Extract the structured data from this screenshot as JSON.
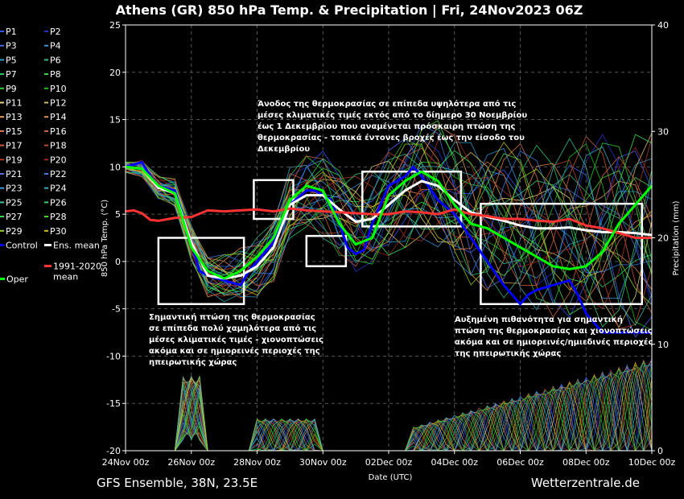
{
  "chart_data": {
    "type": "line",
    "title": "Athens  (GR)  850 hPa Temp. & Precipitation | Fri, 24Nov2023 06Z",
    "ylabel": "850 hPa Temp. (°C)",
    "y2label": "Precipitation (mm)",
    "xlabel": "Date (UTC)",
    "ylim": [
      -20,
      25
    ],
    "y2lim": [
      0,
      40
    ],
    "xlim": [
      0,
      16
    ],
    "yticks": [
      -20,
      -15,
      -10,
      -5,
      0,
      5,
      10,
      15,
      20,
      25
    ],
    "y2ticks": [
      0,
      10,
      20,
      30,
      40
    ],
    "xticks": [
      {
        "x": 0,
        "label": "24Nov 00z"
      },
      {
        "x": 2,
        "label": "26Nov 00z"
      },
      {
        "x": 4,
        "label": "28Nov 00z"
      },
      {
        "x": 6,
        "label": "30Nov 00z"
      },
      {
        "x": 8,
        "label": "02Dec 00z"
      },
      {
        "x": 10,
        "label": "04Dec 00z"
      },
      {
        "x": 12,
        "label": "06Dec 00z"
      },
      {
        "x": 14,
        "label": "08Dec 00z"
      },
      {
        "x": 16,
        "label": "10Dec 00z"
      }
    ],
    "grid": true,
    "legend_position": "left",
    "legend": [
      {
        "label": "P1",
        "color": "#3355ff"
      },
      {
        "label": "P2",
        "color": "#2233cc"
      },
      {
        "label": "P3",
        "color": "#4466ee"
      },
      {
        "label": "P4",
        "color": "#3399dd"
      },
      {
        "label": "P5",
        "color": "#2aa0c8"
      },
      {
        "label": "P6",
        "color": "#33bb88"
      },
      {
        "label": "P7",
        "color": "#22cc66"
      },
      {
        "label": "P8",
        "color": "#44dd44"
      },
      {
        "label": "P9",
        "color": "#33cc33"
      },
      {
        "label": "P10",
        "color": "#22bb22"
      },
      {
        "label": "P11",
        "color": "#e8d27a"
      },
      {
        "label": "P12",
        "color": "#d8c060"
      },
      {
        "label": "P13",
        "color": "#e8a060"
      },
      {
        "label": "P14",
        "color": "#e09050"
      },
      {
        "label": "P15",
        "color": "#e07a50"
      },
      {
        "label": "P16",
        "color": "#d06a40"
      },
      {
        "label": "P17",
        "color": "#d05a40"
      },
      {
        "label": "P18",
        "color": "#c04a30"
      },
      {
        "label": "P19",
        "color": "#b03a28"
      },
      {
        "label": "P20",
        "color": "#a02a20"
      },
      {
        "label": "P21",
        "color": "#4a70d8"
      },
      {
        "label": "P22",
        "color": "#3a80e8"
      },
      {
        "label": "P23",
        "color": "#3a9ad8"
      },
      {
        "label": "P24",
        "color": "#3ab0c8"
      },
      {
        "label": "P25",
        "color": "#3ac0a0"
      },
      {
        "label": "P26",
        "color": "#3ad078"
      },
      {
        "label": "P27",
        "color": "#3ae050"
      },
      {
        "label": "P28",
        "color": "#4ae030"
      },
      {
        "label": "P29",
        "color": "#9ad020"
      },
      {
        "label": "P30",
        "color": "#d0c020"
      },
      {
        "label": "Control",
        "color": "#0000ff"
      },
      {
        "label": "Ens. mean",
        "color": "#ffffff"
      },
      {
        "label": "1991-2020 mean",
        "color": "#ff3333"
      },
      {
        "label": "Oper",
        "color": "#00ff00"
      }
    ],
    "series": [
      {
        "name": "Control",
        "color": "#0000ff",
        "x": [
          0,
          0.5,
          0.75,
          1,
          1.5,
          2,
          2.25,
          2.5,
          3,
          3.5,
          3.75,
          4,
          4.5,
          5,
          5.5,
          5.75,
          6,
          6.25,
          6.5,
          6.75,
          7,
          7.25,
          7.5,
          8,
          8.5,
          8.75,
          9,
          9.5,
          10,
          10.5,
          11,
          11.5,
          12,
          12.25,
          12.5,
          13,
          13.5,
          13.75,
          14,
          14.25,
          14.5,
          15,
          15.5,
          16
        ],
        "y": [
          10,
          10.5,
          9,
          8,
          7.5,
          2,
          -1,
          -1.5,
          -2,
          -2.5,
          -1,
          0,
          2,
          6,
          7.5,
          7.5,
          7,
          6.5,
          4,
          1.5,
          0.8,
          1.2,
          4,
          8,
          9,
          10,
          9,
          6.5,
          5,
          2.5,
          0,
          -2.5,
          -4.5,
          -3.5,
          -3,
          -2.5,
          -2,
          -3.5,
          -5.5,
          -6.5,
          -7.5,
          -7.5,
          -7.5,
          -7.5
        ]
      },
      {
        "name": "Ens. mean",
        "color": "#ffffff",
        "x": [
          0,
          0.5,
          1,
          1.5,
          2,
          2.5,
          3,
          3.5,
          4,
          4.5,
          5,
          5.5,
          6,
          6.5,
          7,
          7.5,
          8,
          8.5,
          9,
          9.5,
          10,
          10.5,
          11,
          11.5,
          12,
          12.5,
          13,
          13.5,
          14,
          14.5,
          15,
          15.5,
          16
        ],
        "y": [
          10,
          9.8,
          7.8,
          7.2,
          2,
          -1.5,
          -1.8,
          -1.5,
          -0.5,
          1.5,
          6,
          7,
          7,
          5.5,
          4.2,
          4.5,
          6,
          7.5,
          8.5,
          8,
          6.5,
          5.2,
          4.7,
          4.3,
          3.8,
          3.5,
          3.5,
          3.6,
          3.3,
          3.1,
          3.1,
          3,
          2.8
        ]
      },
      {
        "name": "1991-2020 mean",
        "color": "#ff3333",
        "x": [
          0,
          0.25,
          0.5,
          0.75,
          1,
          1.5,
          2,
          2.5,
          3,
          3.5,
          4,
          4.5,
          5,
          5.5,
          6,
          6.5,
          7,
          7.5,
          8,
          8.5,
          9,
          9.5,
          10,
          10.5,
          11,
          11.5,
          12,
          12.5,
          13,
          13.5,
          14,
          14.5,
          15,
          15.5,
          16
        ],
        "y": [
          5.3,
          5.4,
          5.1,
          4.4,
          4.3,
          4.6,
          4.7,
          5.4,
          5.3,
          5.4,
          5.5,
          5.3,
          5.6,
          5.4,
          5.3,
          5.2,
          5.1,
          5,
          5,
          5.3,
          5.2,
          5,
          5.5,
          5,
          4.8,
          4.5,
          4.5,
          4.3,
          4.2,
          4.5,
          3.8,
          3.5,
          3,
          2.5,
          2.5
        ]
      },
      {
        "name": "Oper",
        "color": "#00ff00",
        "x": [
          0,
          0.5,
          1,
          1.5,
          2,
          2.5,
          3,
          3.5,
          4,
          4.5,
          5,
          5.5,
          6,
          6.5,
          7,
          7.5,
          8,
          8.5,
          9,
          9.5,
          10,
          10.5,
          11,
          11.5,
          12,
          12.5,
          13,
          13.5,
          14,
          14.5,
          15,
          15.5,
          16
        ],
        "y": [
          10,
          9.8,
          8,
          7.2,
          1.5,
          -1,
          -1.8,
          -1,
          0.5,
          2.5,
          6.5,
          8,
          7.5,
          4,
          1.8,
          2.5,
          7,
          8.5,
          9.5,
          8.5,
          6,
          4,
          3.5,
          2.5,
          1.5,
          0.5,
          -0.5,
          -0.8,
          -0.5,
          1,
          4,
          6,
          8
        ]
      }
    ],
    "annotations": [
      {
        "lines": [
          "Άνοδος της θερμοκρασίας σε επίπεδα υψηλότερα από τις",
          "μέσες κλιματικές τιμές εκτός από το δίημερο 30 Νοεμβρίου",
          "έως 1 Δεκεμβρίου που αναμένεται πρόσκαιρη πτώση της",
          "θερμοκρασίας - τοπικά έντονες βροχές έως την είσοδο του",
          "Δεκεμβρίου"
        ]
      },
      {
        "lines": [
          "Σημαντική πτώση της θερμοκρασίας",
          "σε επίπεδα πολύ χαμηλότερα από τις",
          "μέσες κλιματικές τιμές - χιονοπτώσεις",
          "ακόμα και σε ημιορεινές περιοχές της",
          "ηπειρωτικής χώρας"
        ]
      },
      {
        "lines": [
          "Αυξημένη πιθανότητα για σημαντική",
          "πτώση της θερμοκρασίας και χιονοπτώσεις",
          "ακόμα και σε ημιορεινές/ημιεδινές περιοχές",
          "της ηπειρωτικής χώρας"
        ]
      }
    ],
    "boxes": [
      {
        "x0": 1,
        "x1": 3.6,
        "y0": -4.5,
        "y1": 2.5
      },
      {
        "x0": 3.9,
        "x1": 5.1,
        "y0": 4.5,
        "y1": 8.6
      },
      {
        "x0": 5.5,
        "x1": 6.7,
        "y0": -0.5,
        "y1": 2.7
      },
      {
        "x0": 7.2,
        "x1": 10.2,
        "y0": 3.7,
        "y1": 9.5
      },
      {
        "x0": 10.8,
        "x1": 15.7,
        "y0": -4.5,
        "y1": 6.1
      }
    ]
  },
  "footer": {
    "left": "GFS Ensemble, 38N, 23.5E",
    "right": "Wetterzentrale.de"
  }
}
